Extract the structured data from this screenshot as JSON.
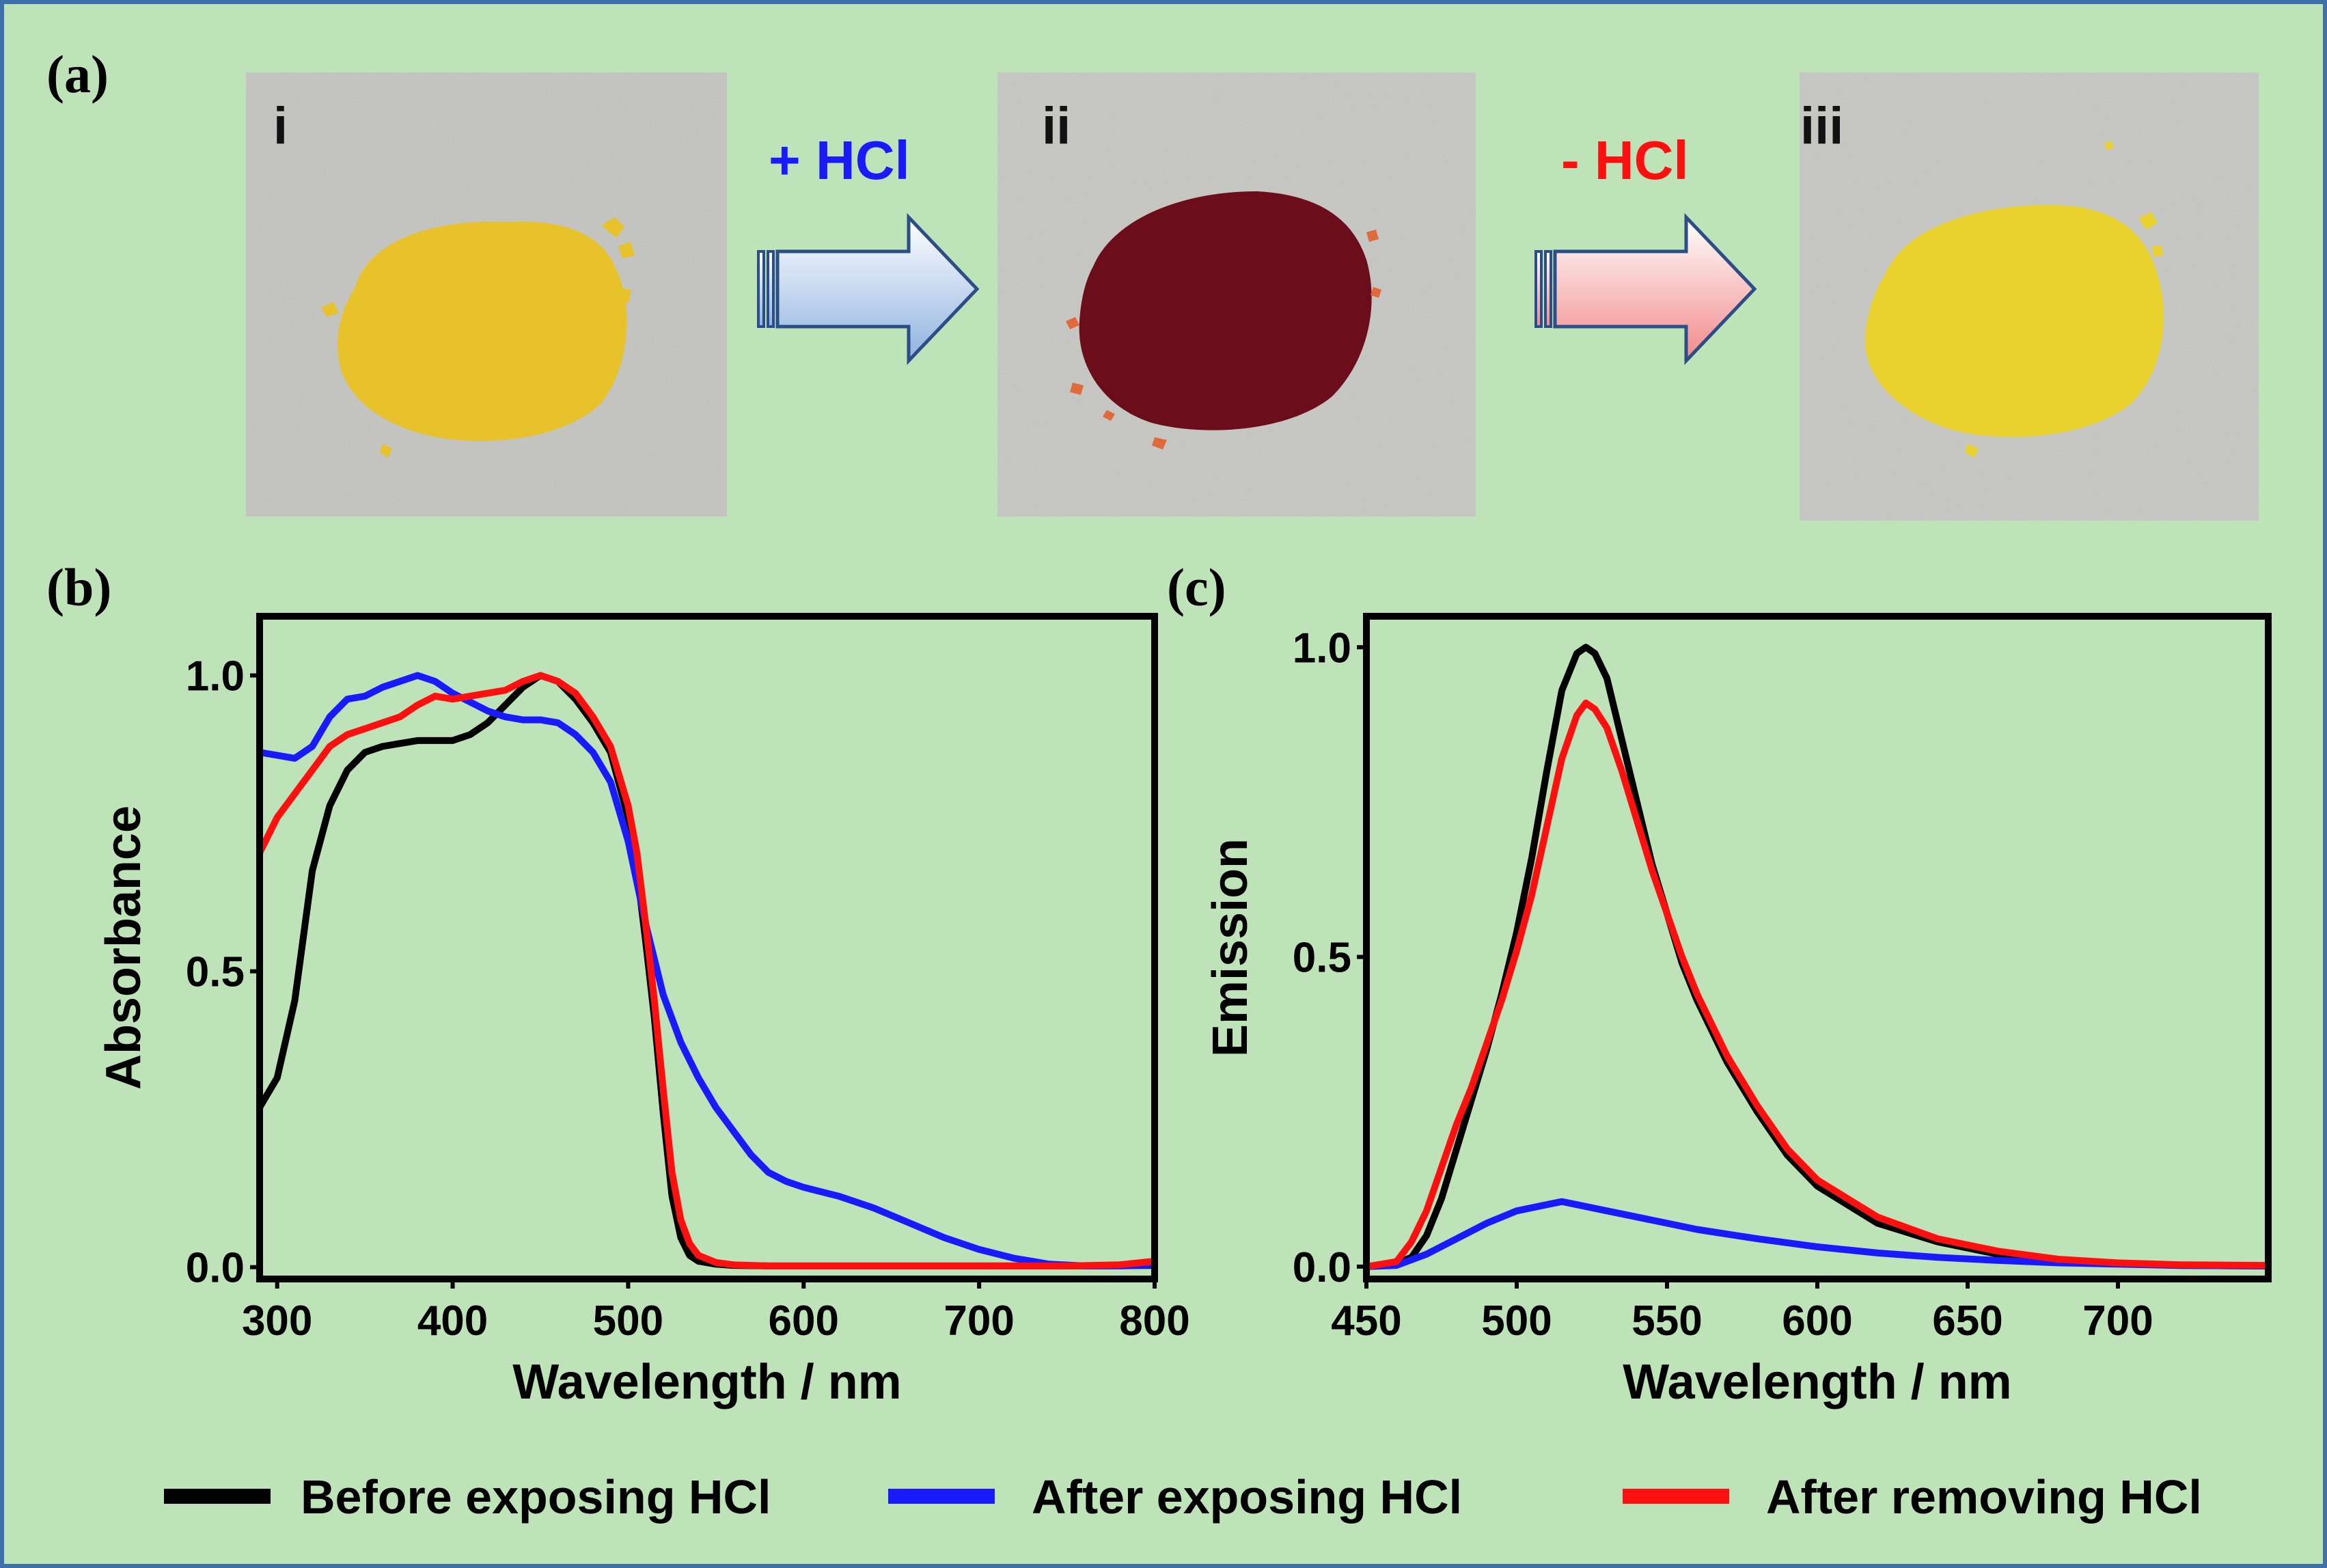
{
  "colors": {
    "background": "#bfe3b8",
    "border": "#3f6fa8",
    "black_series": "#000000",
    "blue_series": "#1a1aff",
    "red_series": "#ff1010",
    "add_step": "#1a1aff",
    "remove_step": "#ff1010"
  },
  "panel_a": {
    "label": "(a)",
    "photos": [
      {
        "label": "i",
        "sample_color": "#e8c22a"
      },
      {
        "label": "ii",
        "sample_color": "#6b0d1a"
      },
      {
        "label": "iii",
        "sample_color": "#ead22e"
      }
    ],
    "steps": [
      {
        "label": "+ HCl",
        "icon": "arrow-right-icon",
        "color": "#1a1aff"
      },
      {
        "label": "- HCl",
        "icon": "arrow-right-icon",
        "color": "#ff1010"
      }
    ]
  },
  "legend": [
    {
      "label": "Before exposing HCl",
      "color": "#000000"
    },
    {
      "label": "After exposing HCl",
      "color": "#1a1aff"
    },
    {
      "label": "After removing HCl",
      "color": "#ff1010"
    }
  ],
  "chart_data": [
    {
      "panel": "(b)",
      "type": "line",
      "title": "",
      "xlabel": "Wavelength / nm",
      "ylabel": "Absorbance",
      "xlim": [
        290,
        800
      ],
      "ylim": [
        -0.02,
        1.1
      ],
      "xticks": [
        "300",
        "400",
        "500",
        "600",
        "700",
        "800"
      ],
      "xtick_values": [
        300,
        400,
        500,
        600,
        700,
        800
      ],
      "yticks": [
        "0.0",
        "0.5",
        "1.0"
      ],
      "ytick_values": [
        0.0,
        0.5,
        1.0
      ],
      "grid": false,
      "series": [
        {
          "name": "Before exposing HCl",
          "color": "#000000",
          "x": [
            290,
            300,
            310,
            320,
            330,
            340,
            350,
            360,
            370,
            380,
            390,
            400,
            410,
            420,
            430,
            440,
            450,
            460,
            470,
            480,
            490,
            500,
            505,
            510,
            515,
            520,
            525,
            530,
            535,
            540,
            550,
            560,
            580,
            600,
            650,
            700,
            750,
            800
          ],
          "y": [
            0.27,
            0.32,
            0.45,
            0.67,
            0.78,
            0.84,
            0.87,
            0.88,
            0.885,
            0.89,
            0.89,
            0.89,
            0.9,
            0.92,
            0.95,
            0.98,
            1.0,
            0.99,
            0.96,
            0.92,
            0.87,
            0.76,
            0.67,
            0.55,
            0.42,
            0.26,
            0.12,
            0.05,
            0.02,
            0.01,
            0.005,
            0.003,
            0.002,
            0.002,
            0.002,
            0.002,
            0.002,
            0.003
          ]
        },
        {
          "name": "After exposing HCl",
          "color": "#1a1aff",
          "x": [
            290,
            300,
            310,
            320,
            330,
            340,
            350,
            360,
            370,
            380,
            390,
            400,
            410,
            420,
            430,
            440,
            450,
            460,
            470,
            480,
            490,
            500,
            510,
            520,
            530,
            540,
            550,
            560,
            570,
            580,
            590,
            600,
            620,
            640,
            660,
            680,
            700,
            720,
            740,
            760,
            780,
            800
          ],
          "y": [
            0.87,
            0.865,
            0.86,
            0.88,
            0.93,
            0.96,
            0.965,
            0.98,
            0.99,
            1.0,
            0.99,
            0.97,
            0.955,
            0.94,
            0.93,
            0.925,
            0.925,
            0.92,
            0.9,
            0.87,
            0.82,
            0.72,
            0.58,
            0.46,
            0.38,
            0.32,
            0.27,
            0.23,
            0.19,
            0.16,
            0.145,
            0.135,
            0.12,
            0.1,
            0.075,
            0.05,
            0.03,
            0.015,
            0.005,
            0.002,
            0.002,
            0.004
          ]
        },
        {
          "name": "After removing HCl",
          "color": "#ff1010",
          "x": [
            290,
            300,
            310,
            320,
            330,
            340,
            350,
            360,
            370,
            380,
            390,
            400,
            410,
            420,
            430,
            440,
            450,
            460,
            470,
            480,
            490,
            500,
            505,
            510,
            515,
            520,
            525,
            530,
            535,
            540,
            550,
            560,
            580,
            600,
            650,
            700,
            750,
            780,
            800
          ],
          "y": [
            0.7,
            0.76,
            0.8,
            0.84,
            0.88,
            0.9,
            0.91,
            0.92,
            0.93,
            0.95,
            0.965,
            0.96,
            0.965,
            0.97,
            0.975,
            0.99,
            1.0,
            0.99,
            0.97,
            0.93,
            0.88,
            0.78,
            0.7,
            0.58,
            0.45,
            0.3,
            0.16,
            0.08,
            0.04,
            0.02,
            0.008,
            0.004,
            0.002,
            0.002,
            0.002,
            0.002,
            0.002,
            0.004,
            0.01
          ]
        }
      ]
    },
    {
      "panel": "(c)",
      "type": "line",
      "title": "",
      "xlabel": "Wavelength / nm",
      "ylabel": "Emission",
      "xlim": [
        450,
        750
      ],
      "ylim": [
        -0.02,
        1.05
      ],
      "xticks": [
        "450",
        "500",
        "550",
        "600",
        "650",
        "700"
      ],
      "xtick_values": [
        450,
        500,
        550,
        600,
        650,
        700
      ],
      "yticks": [
        "0.0",
        "0.5",
        "1.0"
      ],
      "ytick_values": [
        0.0,
        0.5,
        1.0
      ],
      "grid": false,
      "series": [
        {
          "name": "Before exposing HCl",
          "color": "#000000",
          "x": [
            450,
            460,
            465,
            470,
            475,
            480,
            485,
            490,
            495,
            500,
            505,
            510,
            515,
            520,
            523,
            526,
            530,
            535,
            540,
            545,
            550,
            555,
            560,
            570,
            580,
            590,
            600,
            620,
            640,
            660,
            680,
            700,
            720,
            750
          ],
          "y": [
            0.0,
            0.005,
            0.015,
            0.05,
            0.11,
            0.19,
            0.27,
            0.35,
            0.44,
            0.54,
            0.66,
            0.8,
            0.93,
            0.99,
            1.0,
            0.99,
            0.95,
            0.85,
            0.75,
            0.65,
            0.57,
            0.49,
            0.43,
            0.33,
            0.25,
            0.18,
            0.13,
            0.07,
            0.04,
            0.02,
            0.01,
            0.005,
            0.002,
            0.001
          ]
        },
        {
          "name": "After exposing HCl",
          "color": "#1a1aff",
          "x": [
            450,
            460,
            470,
            480,
            490,
            500,
            510,
            515,
            520,
            530,
            540,
            550,
            560,
            580,
            600,
            620,
            640,
            660,
            680,
            700,
            720,
            750
          ],
          "y": [
            0.0,
            0.002,
            0.02,
            0.045,
            0.07,
            0.09,
            0.1,
            0.105,
            0.1,
            0.09,
            0.08,
            0.07,
            0.06,
            0.045,
            0.032,
            0.022,
            0.015,
            0.01,
            0.006,
            0.004,
            0.002,
            0.001
          ]
        },
        {
          "name": "After removing HCl",
          "color": "#ff1010",
          "x": [
            450,
            460,
            465,
            470,
            475,
            480,
            485,
            490,
            495,
            500,
            505,
            510,
            515,
            520,
            523,
            526,
            530,
            535,
            540,
            545,
            550,
            555,
            560,
            570,
            580,
            590,
            600,
            620,
            640,
            660,
            680,
            700,
            720,
            750
          ],
          "y": [
            0.0,
            0.008,
            0.04,
            0.09,
            0.16,
            0.23,
            0.29,
            0.36,
            0.43,
            0.51,
            0.6,
            0.71,
            0.82,
            0.89,
            0.91,
            0.9,
            0.87,
            0.8,
            0.72,
            0.64,
            0.57,
            0.5,
            0.44,
            0.34,
            0.26,
            0.19,
            0.14,
            0.08,
            0.045,
            0.025,
            0.012,
            0.006,
            0.003,
            0.002
          ]
        }
      ]
    }
  ]
}
